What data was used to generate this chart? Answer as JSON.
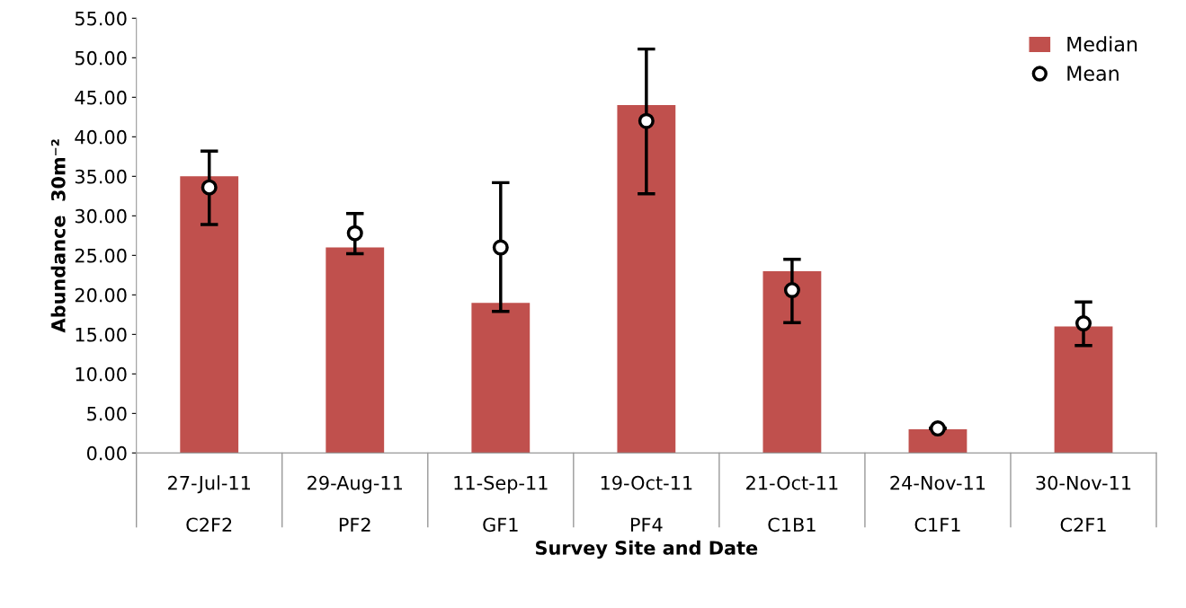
{
  "chart_data": {
    "type": "bar",
    "xlabel": "Survey Site and Date",
    "ylabel": "Abundance  30m⁻²",
    "categories": [
      "27-Jul-11\n\nC2F2",
      "29-Aug-11\n\nPF2",
      "11-Sep-11\n\nGF1",
      "19-Oct-11\n\nPF4",
      "21-Oct-11\n\nC1B1",
      "24-Nov-11\n\nC1F1",
      "30-Nov-11\n\nC2F1"
    ],
    "series": [
      {
        "name": "Median",
        "color": "#c0504d",
        "values": [
          35.0,
          26.0,
          19.0,
          44.0,
          23.0,
          3.0,
          16.0
        ]
      },
      {
        "name": "Mean",
        "type": "scatter",
        "color": "#ffffff",
        "values": [
          33.6,
          27.8,
          26.0,
          42.0,
          20.6,
          3.1,
          16.4
        ],
        "errors": [
          [
            28.9,
            38.2
          ],
          [
            25.2,
            30.3
          ],
          [
            17.9,
            34.2
          ],
          [
            32.8,
            51.1
          ],
          [
            16.5,
            24.5
          ],
          null,
          [
            13.6,
            19.1
          ]
        ]
      }
    ],
    "ylim": [
      0,
      55
    ],
    "yticks": [
      {
        "value": 0,
        "label": "0.00"
      },
      {
        "value": 5,
        "label": "5.00"
      },
      {
        "value": 10,
        "label": "10.00"
      },
      {
        "value": 15,
        "label": "15.00"
      },
      {
        "value": 20,
        "label": "20.00"
      },
      {
        "value": 25,
        "label": "25.00"
      },
      {
        "value": 30,
        "label": "30.00"
      },
      {
        "value": 35,
        "label": "35.00"
      },
      {
        "value": 40,
        "label": "40.00"
      },
      {
        "value": 45,
        "label": "45.00"
      },
      {
        "value": 50,
        "label": "50.00"
      },
      {
        "value": 55,
        "label": "55.00"
      }
    ],
    "grid": false,
    "legend": "top right",
    "marker": "circle"
  }
}
